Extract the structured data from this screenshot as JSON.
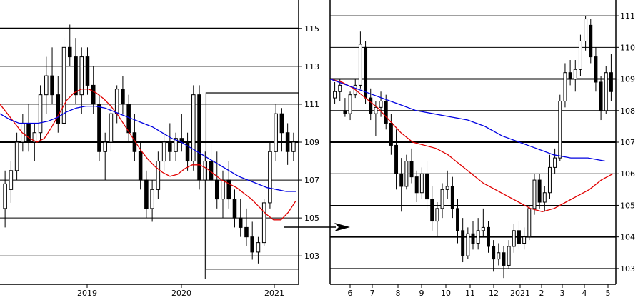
{
  "chart_data": [
    {
      "type": "candlestick",
      "panel": "left",
      "title": "",
      "xlabel": "",
      "ylabel": "",
      "ylim": [
        101.5,
        116.5
      ],
      "y_ticks": [
        103,
        105,
        107,
        109,
        111,
        113,
        115
      ],
      "y_ticks_labeled": [
        "103",
        "105",
        "107",
        "109",
        "111",
        "113",
        "115"
      ],
      "x_ticks": [
        "2019",
        "2020",
        "2021"
      ],
      "grid": true,
      "colors": {
        "fast_ma": "#e00000",
        "slow_ma": "#0000e0",
        "candle": "#000000"
      },
      "candles": [
        {
          "o": 105.5,
          "h": 107.5,
          "l": 104.5,
          "c": 106.8
        },
        {
          "o": 106.5,
          "h": 108.0,
          "l": 105.8,
          "c": 107.5
        },
        {
          "o": 107.5,
          "h": 109.5,
          "l": 107.0,
          "c": 109.0
        },
        {
          "o": 109.0,
          "h": 110.5,
          "l": 108.5,
          "c": 110.0
        },
        {
          "o": 110.0,
          "h": 111.0,
          "l": 108.5,
          "c": 109.0
        },
        {
          "o": 109.0,
          "h": 110.0,
          "l": 108.0,
          "c": 109.5
        },
        {
          "o": 109.5,
          "h": 112.0,
          "l": 109.0,
          "c": 111.5
        },
        {
          "o": 111.5,
          "h": 113.5,
          "l": 110.5,
          "c": 112.5
        },
        {
          "o": 112.5,
          "h": 114.0,
          "l": 111.0,
          "c": 111.5
        },
        {
          "o": 111.5,
          "h": 112.5,
          "l": 109.5,
          "c": 110.0
        },
        {
          "o": 110.0,
          "h": 114.5,
          "l": 109.8,
          "c": 114.0
        },
        {
          "o": 114.0,
          "h": 115.2,
          "l": 113.0,
          "c": 113.5
        },
        {
          "o": 113.5,
          "h": 114.5,
          "l": 111.0,
          "c": 111.5
        },
        {
          "o": 111.5,
          "h": 114.0,
          "l": 110.5,
          "c": 113.5
        },
        {
          "o": 113.5,
          "h": 114.0,
          "l": 111.5,
          "c": 112.0
        },
        {
          "o": 112.0,
          "h": 113.0,
          "l": 110.5,
          "c": 111.0
        },
        {
          "o": 111.0,
          "h": 111.5,
          "l": 108.0,
          "c": 108.5
        },
        {
          "o": 108.5,
          "h": 109.5,
          "l": 107.0,
          "c": 109.0
        },
        {
          "o": 109.0,
          "h": 111.0,
          "l": 108.5,
          "c": 110.5
        },
        {
          "o": 110.5,
          "h": 112.0,
          "l": 110.0,
          "c": 111.8
        },
        {
          "o": 111.8,
          "h": 112.5,
          "l": 110.5,
          "c": 111.0
        },
        {
          "o": 111.0,
          "h": 111.5,
          "l": 109.0,
          "c": 109.5
        },
        {
          "o": 109.5,
          "h": 110.5,
          "l": 108.0,
          "c": 108.5
        },
        {
          "o": 108.5,
          "h": 109.0,
          "l": 106.5,
          "c": 107.0
        },
        {
          "o": 107.0,
          "h": 107.5,
          "l": 105.0,
          "c": 105.5
        },
        {
          "o": 105.5,
          "h": 107.0,
          "l": 104.8,
          "c": 106.5
        },
        {
          "o": 106.5,
          "h": 108.5,
          "l": 106.0,
          "c": 108.0
        },
        {
          "o": 108.0,
          "h": 109.5,
          "l": 107.5,
          "c": 109.0
        },
        {
          "o": 109.0,
          "h": 110.0,
          "l": 108.0,
          "c": 108.5
        },
        {
          "o": 108.5,
          "h": 109.5,
          "l": 108.0,
          "c": 109.2
        },
        {
          "o": 109.2,
          "h": 110.5,
          "l": 108.5,
          "c": 109.0
        },
        {
          "o": 109.0,
          "h": 109.5,
          "l": 107.5,
          "c": 108.0
        },
        {
          "o": 108.0,
          "h": 112.0,
          "l": 107.5,
          "c": 111.5
        },
        {
          "o": 111.5,
          "h": 112.0,
          "l": 106.5,
          "c": 107.0
        },
        {
          "o": 107.0,
          "h": 108.5,
          "l": 101.8,
          "c": 108.0
        },
        {
          "o": 108.0,
          "h": 109.0,
          "l": 106.5,
          "c": 107.0
        },
        {
          "o": 107.0,
          "h": 108.5,
          "l": 105.5,
          "c": 106.0
        },
        {
          "o": 106.0,
          "h": 107.5,
          "l": 105.0,
          "c": 107.0
        },
        {
          "o": 107.0,
          "h": 108.0,
          "l": 105.5,
          "c": 106.0
        },
        {
          "o": 106.0,
          "h": 106.5,
          "l": 104.5,
          "c": 105.0
        },
        {
          "o": 105.0,
          "h": 106.0,
          "l": 104.0,
          "c": 104.5
        },
        {
          "o": 104.5,
          "h": 105.5,
          "l": 103.5,
          "c": 104.0
        },
        {
          "o": 104.0,
          "h": 104.8,
          "l": 102.8,
          "c": 103.2
        },
        {
          "o": 103.2,
          "h": 104.0,
          "l": 102.6,
          "c": 103.7
        },
        {
          "o": 103.7,
          "h": 106.0,
          "l": 103.5,
          "c": 105.8
        },
        {
          "o": 105.8,
          "h": 109.0,
          "l": 105.5,
          "c": 108.5
        },
        {
          "o": 108.5,
          "h": 111.0,
          "l": 108.0,
          "c": 110.5
        },
        {
          "o": 110.5,
          "h": 110.8,
          "l": 108.5,
          "c": 109.5
        },
        {
          "o": 109.5,
          "h": 110.0,
          "l": 107.8,
          "c": 108.5
        },
        {
          "o": 108.5,
          "h": 109.5,
          "l": 108.0,
          "c": 109.0
        }
      ],
      "fast_ma": [
        111.0,
        110.5,
        110.0,
        109.5,
        109.2,
        109.0,
        109.2,
        109.8,
        110.5,
        111.2,
        111.6,
        111.8,
        111.8,
        111.6,
        111.3,
        110.9,
        110.4,
        109.8,
        109.2,
        108.6,
        108.1,
        107.7,
        107.4,
        107.2,
        107.3,
        107.6,
        107.8,
        107.8,
        107.6,
        107.3,
        107.0,
        106.8,
        106.6,
        106.3,
        106.0,
        105.6,
        105.2,
        104.9,
        104.9,
        105.3,
        105.9
      ],
      "slow_ma": [
        110.5,
        110.2,
        110.0,
        110.0,
        110.0,
        110.1,
        110.3,
        110.6,
        110.8,
        110.9,
        110.9,
        110.8,
        110.6,
        110.4,
        110.2,
        110.0,
        109.8,
        109.5,
        109.2,
        109.0,
        108.7,
        108.4,
        108.1,
        107.8,
        107.5,
        107.2,
        107.0,
        106.8,
        106.6,
        106.5,
        106.4,
        106.4
      ],
      "highlight_box": {
        "x_start_fraction": 0.69,
        "x_end_fraction": 1.0,
        "y_high": 111.6,
        "y_low": 102.3
      }
    },
    {
      "type": "candlestick",
      "panel": "right",
      "title": "",
      "xlabel": "",
      "ylabel": "",
      "ylim": [
        102.5,
        111.5
      ],
      "y_ticks": [
        103,
        104,
        105,
        106,
        107,
        108,
        109,
        110,
        111
      ],
      "y_ticks_labeled": [
        "103",
        "104",
        "105",
        "106",
        "107",
        "108",
        "109",
        "110",
        "111"
      ],
      "x_ticks": [
        "6",
        "7",
        "8",
        "9",
        "10",
        "11",
        "12",
        "2021",
        "2",
        "3",
        "4",
        "5"
      ],
      "grid": true,
      "candles": [
        {
          "o": 108.4,
          "h": 108.9,
          "l": 108.2,
          "c": 108.6
        },
        {
          "o": 108.6,
          "h": 109.0,
          "l": 108.3,
          "c": 108.8
        },
        {
          "o": 108.0,
          "h": 108.4,
          "l": 107.8,
          "c": 107.9
        },
        {
          "o": 107.9,
          "h": 108.6,
          "l": 107.7,
          "c": 108.5
        },
        {
          "o": 108.5,
          "h": 109.0,
          "l": 108.4,
          "c": 108.8
        },
        {
          "o": 108.8,
          "h": 110.5,
          "l": 108.7,
          "c": 110.1
        },
        {
          "o": 110.0,
          "h": 110.2,
          "l": 108.2,
          "c": 108.4
        },
        {
          "o": 108.4,
          "h": 108.7,
          "l": 107.7,
          "c": 107.9
        },
        {
          "o": 107.9,
          "h": 108.3,
          "l": 107.2,
          "c": 108.1
        },
        {
          "o": 108.1,
          "h": 108.6,
          "l": 107.8,
          "c": 108.3
        },
        {
          "o": 108.3,
          "h": 108.5,
          "l": 107.4,
          "c": 107.6
        },
        {
          "o": 107.6,
          "h": 107.9,
          "l": 106.6,
          "c": 106.9
        },
        {
          "o": 106.9,
          "h": 107.4,
          "l": 105.5,
          "c": 106.0
        },
        {
          "o": 106.0,
          "h": 106.5,
          "l": 104.8,
          "c": 105.6
        },
        {
          "o": 105.6,
          "h": 106.6,
          "l": 105.5,
          "c": 106.4
        },
        {
          "o": 106.4,
          "h": 106.8,
          "l": 105.7,
          "c": 105.9
        },
        {
          "o": 105.9,
          "h": 106.1,
          "l": 105.1,
          "c": 105.4
        },
        {
          "o": 105.4,
          "h": 106.2,
          "l": 105.2,
          "c": 106.0
        },
        {
          "o": 106.0,
          "h": 106.4,
          "l": 104.9,
          "c": 105.2
        },
        {
          "o": 105.2,
          "h": 105.6,
          "l": 104.2,
          "c": 104.5
        },
        {
          "o": 104.5,
          "h": 105.1,
          "l": 104.0,
          "c": 104.9
        },
        {
          "o": 104.9,
          "h": 105.7,
          "l": 104.6,
          "c": 105.5
        },
        {
          "o": 105.5,
          "h": 106.1,
          "l": 105.2,
          "c": 105.6
        },
        {
          "o": 105.6,
          "h": 105.9,
          "l": 104.6,
          "c": 104.9
        },
        {
          "o": 104.9,
          "h": 105.2,
          "l": 103.8,
          "c": 104.2
        },
        {
          "o": 104.2,
          "h": 104.6,
          "l": 103.2,
          "c": 103.4
        },
        {
          "o": 103.4,
          "h": 104.3,
          "l": 103.3,
          "c": 104.1
        },
        {
          "o": 104.1,
          "h": 104.5,
          "l": 103.6,
          "c": 103.8
        },
        {
          "o": 103.8,
          "h": 104.6,
          "l": 103.6,
          "c": 104.2
        },
        {
          "o": 104.2,
          "h": 104.9,
          "l": 104.0,
          "c": 104.3
        },
        {
          "o": 104.3,
          "h": 104.5,
          "l": 103.5,
          "c": 103.7
        },
        {
          "o": 103.7,
          "h": 103.9,
          "l": 102.9,
          "c": 103.3
        },
        {
          "o": 103.3,
          "h": 103.8,
          "l": 103.1,
          "c": 103.5
        },
        {
          "o": 103.5,
          "h": 103.7,
          "l": 102.7,
          "c": 103.1
        },
        {
          "o": 103.1,
          "h": 103.9,
          "l": 103.0,
          "c": 103.7
        },
        {
          "o": 103.7,
          "h": 104.4,
          "l": 103.5,
          "c": 104.2
        },
        {
          "o": 104.2,
          "h": 104.5,
          "l": 103.6,
          "c": 103.8
        },
        {
          "o": 103.8,
          "h": 104.3,
          "l": 103.6,
          "c": 104.0
        },
        {
          "o": 104.0,
          "h": 105.0,
          "l": 103.9,
          "c": 104.9
        },
        {
          "o": 104.9,
          "h": 106.0,
          "l": 104.7,
          "c": 105.8
        },
        {
          "o": 105.8,
          "h": 106.0,
          "l": 104.9,
          "c": 105.1
        },
        {
          "o": 105.1,
          "h": 105.6,
          "l": 104.8,
          "c": 105.4
        },
        {
          "o": 105.4,
          "h": 106.6,
          "l": 105.2,
          "c": 106.2
        },
        {
          "o": 106.2,
          "h": 106.8,
          "l": 106.0,
          "c": 106.5
        },
        {
          "o": 106.5,
          "h": 108.5,
          "l": 106.4,
          "c": 108.3
        },
        {
          "o": 108.3,
          "h": 109.5,
          "l": 108.1,
          "c": 109.2
        },
        {
          "o": 109.2,
          "h": 109.6,
          "l": 108.8,
          "c": 109.0
        },
        {
          "o": 109.0,
          "h": 109.6,
          "l": 108.6,
          "c": 109.3
        },
        {
          "o": 109.3,
          "h": 110.4,
          "l": 109.1,
          "c": 110.2
        },
        {
          "o": 110.2,
          "h": 111.0,
          "l": 109.9,
          "c": 110.9
        },
        {
          "o": 110.7,
          "h": 110.9,
          "l": 109.5,
          "c": 109.7
        },
        {
          "o": 109.7,
          "h": 110.0,
          "l": 108.6,
          "c": 108.9
        },
        {
          "o": 108.9,
          "h": 109.1,
          "l": 107.7,
          "c": 108.0
        },
        {
          "o": 108.0,
          "h": 109.4,
          "l": 107.9,
          "c": 109.2
        },
        {
          "o": 109.2,
          "h": 109.8,
          "l": 108.3,
          "c": 108.6
        }
      ],
      "fast_ma": [
        109.0,
        108.9,
        108.7,
        108.4,
        108.1,
        107.7,
        107.3,
        107.0,
        106.9,
        106.8,
        106.6,
        106.3,
        106.0,
        105.7,
        105.5,
        105.3,
        105.1,
        104.9,
        104.8,
        104.9,
        105.1,
        105.3,
        105.5,
        105.8,
        106.0
      ],
      "slow_ma": [
        109.0,
        108.8,
        108.6,
        108.4,
        108.2,
        108.0,
        107.9,
        107.8,
        107.7,
        107.5,
        107.2,
        107.0,
        106.8,
        106.6,
        106.5,
        106.5,
        106.4
      ],
      "arrow": "points from left highlight box to right panel"
    }
  ]
}
